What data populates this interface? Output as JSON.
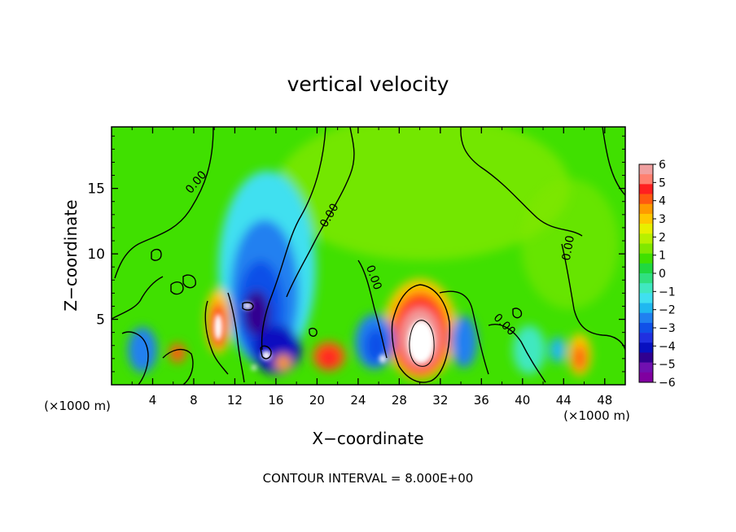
{
  "chart_data": {
    "type": "heatmap",
    "title": "vertical velocity",
    "xlabel": "X−coordinate",
    "ylabel": "Z−coordinate",
    "x_unit_left": "(×1000 m)",
    "x_unit_right": "(×1000 m)",
    "footer": "CONTOUR INTERVAL = 8.000E+00",
    "xlim": [
      0,
      50
    ],
    "ylim": [
      0,
      19.7
    ],
    "x_ticks": [
      4,
      8,
      12,
      16,
      20,
      24,
      28,
      32,
      36,
      40,
      44,
      48
    ],
    "x_tick_labels": [
      "4",
      "8",
      "12",
      "16",
      "20",
      "24",
      "28",
      "32",
      "36",
      "40",
      "44",
      "48"
    ],
    "y_ticks": [
      5,
      10,
      15
    ],
    "y_tick_labels": [
      "5",
      "10",
      "15"
    ],
    "contour_labels": [
      {
        "text": "0.00",
        "x": 8.5,
        "z": 15.3,
        "angle": -50
      },
      {
        "text": "0.00",
        "x": 21.5,
        "z": 12.8,
        "angle": -60
      },
      {
        "text": "0.00",
        "x": 25.2,
        "z": 8.1,
        "angle": 70
      },
      {
        "text": "0.00",
        "x": 38.0,
        "z": 4.4,
        "angle": 45
      },
      {
        "text": "0.00",
        "x": 44.8,
        "z": 10.4,
        "angle": -80
      }
    ],
    "colorbar": {
      "min": -6,
      "max": 6,
      "labels": [
        "6",
        "5",
        "4",
        "3",
        "2",
        "1",
        "0",
        "−1",
        "−2",
        "−3",
        "−4",
        "−5",
        "−6"
      ],
      "colors": [
        "#f0a0a0",
        "#ff8070",
        "#ff2020",
        "#ff5a10",
        "#ff9a00",
        "#ffc800",
        "#e8f000",
        "#b8f000",
        "#80e800",
        "#40e000",
        "#20d840",
        "#30e080",
        "#40e8c0",
        "#40e0f0",
        "#20b8f0",
        "#2080f0",
        "#1050e8",
        "#2030e0",
        "#0810c0",
        "#300090",
        "#7010b0",
        "#8000a0"
      ]
    },
    "cells": [
      {
        "x": 7,
        "z": 10,
        "w": 0.0
      },
      {
        "x": 15,
        "z": 7,
        "w": -5.0
      },
      {
        "x": 10.5,
        "z": 5.0,
        "w": 4.0
      },
      {
        "x": 29.8,
        "z": 3.3,
        "w": 6.0
      },
      {
        "x": 21.0,
        "z": 2.3,
        "w": 3.5
      },
      {
        "x": 26.5,
        "z": 3.0,
        "w": -4.0
      },
      {
        "x": 34.0,
        "z": 3.0,
        "w": -3.5
      },
      {
        "x": 30.0,
        "z": 15.0,
        "w": 1.0
      },
      {
        "x": 16.0,
        "z": 12.5,
        "w": -2.0
      }
    ]
  }
}
